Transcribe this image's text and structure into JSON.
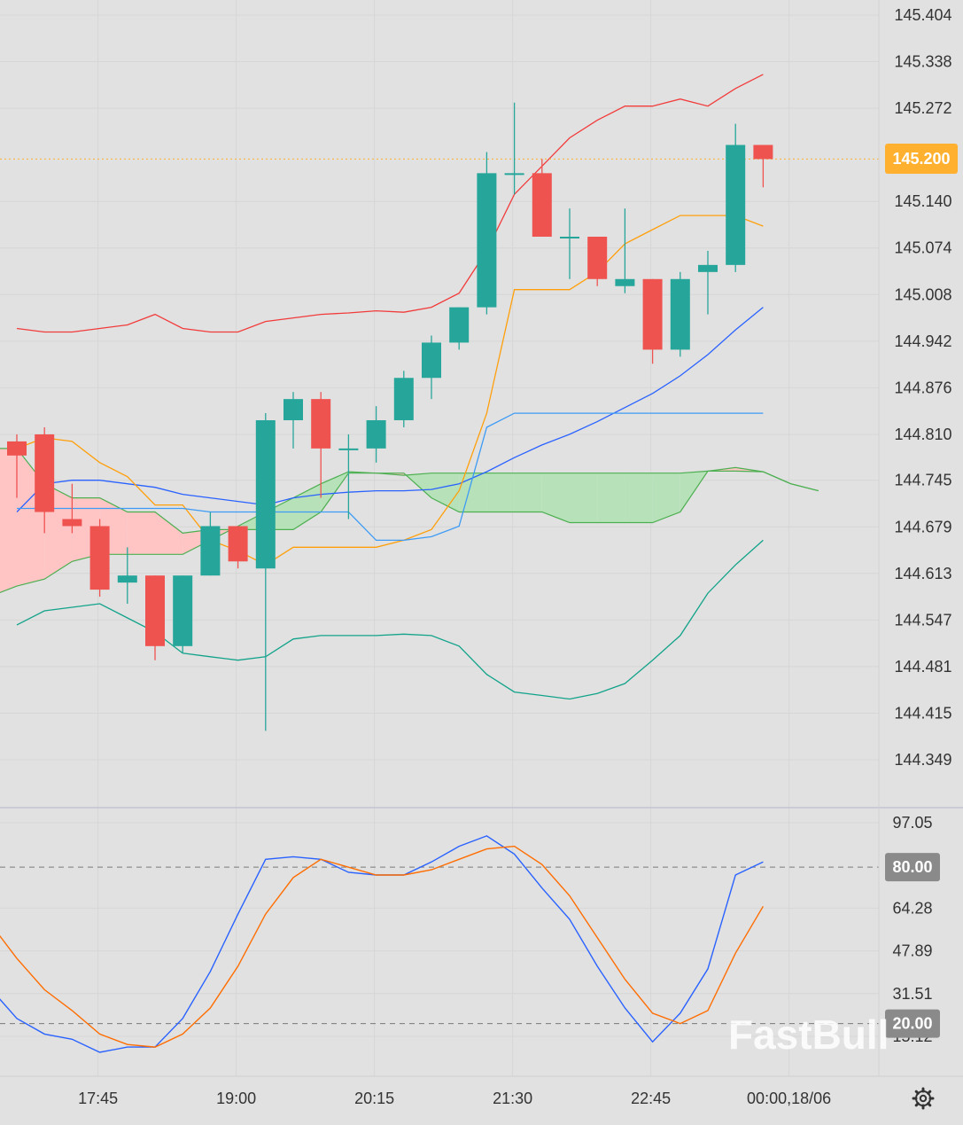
{
  "colors": {
    "background": "#e1e1e1",
    "grid": "#d6d6d6",
    "bull": "#26a69a",
    "bear": "#ef5350",
    "bb_upper": "#f23b3b",
    "bb_lower": "#12a38a",
    "bb_mid": "#2962ff",
    "tenkan": "#ff9f0a",
    "kijun": "#3d9bf5",
    "span_line": "#4caf50",
    "cloud_bull": "#b7e2b9",
    "cloud_bear": "#ffc5c5",
    "stoch_k": "#2962ff",
    "stoch_d": "#ff6d00",
    "price_badge": "#ffb02e",
    "level_badge": "#8a8a8a"
  },
  "price_badge": {
    "value": "145.200"
  },
  "watermark": {
    "text": "FastBull"
  },
  "settings_icon": "gear-icon",
  "chart_data": [
    {
      "type": "candlestick",
      "yticks": [
        "145.404",
        "145.338",
        "145.272",
        "145.140",
        "145.074",
        "145.008",
        "144.942",
        "144.876",
        "144.810",
        "144.745",
        "144.679",
        "144.613",
        "144.547",
        "144.481",
        "144.415",
        "144.349"
      ],
      "ylim": [
        144.3,
        145.42
      ],
      "xticks": [
        "17:45",
        "19:00",
        "20:15",
        "21:30",
        "22:45",
        "00:00,18/06"
      ],
      "current_price": 145.2,
      "candles": [
        {
          "o": 144.8,
          "h": 144.81,
          "l": 144.72,
          "c": 144.78
        },
        {
          "o": 144.81,
          "h": 144.82,
          "l": 144.67,
          "c": 144.7
        },
        {
          "o": 144.69,
          "h": 144.74,
          "l": 144.67,
          "c": 144.68
        },
        {
          "o": 144.68,
          "h": 144.69,
          "l": 144.58,
          "c": 144.59
        },
        {
          "o": 144.6,
          "h": 144.65,
          "l": 144.57,
          "c": 144.61
        },
        {
          "o": 144.61,
          "h": 144.61,
          "l": 144.49,
          "c": 144.51
        },
        {
          "o": 144.51,
          "h": 144.61,
          "l": 144.5,
          "c": 144.61
        },
        {
          "o": 144.61,
          "h": 144.7,
          "l": 144.61,
          "c": 144.68
        },
        {
          "o": 144.68,
          "h": 144.68,
          "l": 144.62,
          "c": 144.63
        },
        {
          "o": 144.62,
          "h": 144.84,
          "l": 144.39,
          "c": 144.83
        },
        {
          "o": 144.83,
          "h": 144.87,
          "l": 144.79,
          "c": 144.86
        },
        {
          "o": 144.86,
          "h": 144.87,
          "l": 144.72,
          "c": 144.79
        },
        {
          "o": 144.79,
          "h": 144.81,
          "l": 144.69,
          "c": 144.79
        },
        {
          "o": 144.79,
          "h": 144.85,
          "l": 144.77,
          "c": 144.83
        },
        {
          "o": 144.83,
          "h": 144.9,
          "l": 144.82,
          "c": 144.89
        },
        {
          "o": 144.89,
          "h": 144.95,
          "l": 144.86,
          "c": 144.94
        },
        {
          "o": 144.94,
          "h": 144.99,
          "l": 144.93,
          "c": 144.99
        },
        {
          "o": 144.99,
          "h": 145.21,
          "l": 144.98,
          "c": 145.18
        },
        {
          "o": 145.18,
          "h": 145.28,
          "l": 145.15,
          "c": 145.18
        },
        {
          "o": 145.18,
          "h": 145.2,
          "l": 145.1,
          "c": 145.09
        },
        {
          "o": 145.09,
          "h": 145.13,
          "l": 145.03,
          "c": 145.09
        },
        {
          "o": 145.09,
          "h": 145.09,
          "l": 145.02,
          "c": 145.03
        },
        {
          "o": 145.02,
          "h": 145.13,
          "l": 145.01,
          "c": 145.03
        },
        {
          "o": 145.03,
          "h": 145.03,
          "l": 144.91,
          "c": 144.93
        },
        {
          "o": 144.93,
          "h": 145.04,
          "l": 144.92,
          "c": 145.03
        },
        {
          "o": 145.04,
          "h": 145.07,
          "l": 144.98,
          "c": 145.05
        },
        {
          "o": 145.05,
          "h": 145.25,
          "l": 145.04,
          "c": 145.22
        },
        {
          "o": 145.22,
          "h": 145.22,
          "l": 145.16,
          "c": 145.2
        }
      ],
      "bb_upper": [
        144.96,
        144.955,
        144.955,
        144.96,
        144.965,
        144.98,
        144.96,
        144.955,
        144.955,
        144.97,
        144.975,
        144.98,
        144.982,
        144.985,
        144.983,
        144.99,
        145.01,
        145.07,
        145.15,
        145.19,
        145.23,
        145.255,
        145.275,
        145.275,
        145.285,
        145.275,
        145.3,
        145.32
      ],
      "bb_mid": [
        144.7,
        144.74,
        144.745,
        144.745,
        144.74,
        144.735,
        144.725,
        144.72,
        144.715,
        144.71,
        144.72,
        144.725,
        144.728,
        144.73,
        144.73,
        144.732,
        144.74,
        144.757,
        144.777,
        144.795,
        144.81,
        144.828,
        144.848,
        144.868,
        144.893,
        144.923,
        144.958,
        144.99
      ],
      "bb_lower": [
        144.54,
        144.56,
        144.565,
        144.57,
        144.55,
        144.53,
        144.5,
        144.495,
        144.49,
        144.495,
        144.52,
        144.525,
        144.525,
        144.525,
        144.527,
        144.525,
        144.51,
        144.47,
        144.445,
        144.44,
        144.435,
        144.443,
        144.457,
        144.49,
        144.525,
        144.585,
        144.625,
        144.66
      ],
      "tenkan": [
        144.79,
        144.805,
        144.8,
        144.77,
        144.75,
        144.71,
        144.71,
        144.66,
        144.645,
        144.625,
        144.65,
        144.65,
        144.65,
        144.65,
        144.66,
        144.675,
        144.73,
        144.84,
        145.015,
        145.015,
        145.015,
        145.04,
        145.08,
        145.1,
        145.12,
        145.12,
        145.12,
        145.105
      ],
      "kijun": [
        144.705,
        144.705,
        144.705,
        144.705,
        144.705,
        144.705,
        144.705,
        144.7,
        144.7,
        144.7,
        144.7,
        144.7,
        144.7,
        144.66,
        144.66,
        144.665,
        144.68,
        144.82,
        144.84,
        144.84,
        144.84,
        144.84,
        144.84,
        144.84,
        144.84,
        144.84,
        144.84,
        144.84
      ],
      "span_a": [
        144.58,
        144.595,
        144.605,
        144.63,
        144.64,
        144.64,
        144.64,
        144.64,
        144.66,
        144.68,
        144.7,
        144.72,
        144.74,
        144.757,
        144.755,
        144.752,
        144.755,
        144.755,
        144.755,
        144.755,
        144.755,
        144.755,
        144.755,
        144.755,
        144.755,
        144.755,
        144.758,
        144.758,
        144.757,
        144.74,
        144.73
      ],
      "span_b": [
        144.79,
        144.79,
        144.74,
        144.72,
        144.72,
        144.7,
        144.7,
        144.67,
        144.675,
        144.675,
        144.675,
        144.675,
        144.7,
        144.755,
        144.755,
        144.755,
        144.72,
        144.7,
        144.7,
        144.7,
        144.7,
        144.685,
        144.685,
        144.685,
        144.685,
        144.7,
        144.758,
        144.763,
        144.757,
        144.74,
        144.73
      ]
    },
    {
      "type": "line",
      "title": "",
      "yticks": [
        "97.05",
        "64.28",
        "47.89",
        "31.51",
        "15.12"
      ],
      "ylim": [
        0,
        104
      ],
      "levels": [
        "80.00",
        "20.00"
      ],
      "series": [
        {
          "values": [
            34,
            22,
            16,
            14,
            9,
            11,
            11,
            22,
            40,
            62,
            83,
            84,
            83,
            78,
            77,
            77,
            82,
            88,
            92,
            85,
            72,
            60,
            42,
            26,
            13,
            24,
            41,
            77,
            82
          ]
        },
        {
          "values": [
            59,
            45,
            33,
            25,
            16,
            12,
            11,
            16,
            26,
            42,
            62,
            76,
            83,
            80,
            77,
            77,
            79,
            83,
            87,
            88,
            81,
            69,
            53,
            37,
            24,
            20,
            25,
            47,
            65
          ]
        }
      ]
    }
  ]
}
